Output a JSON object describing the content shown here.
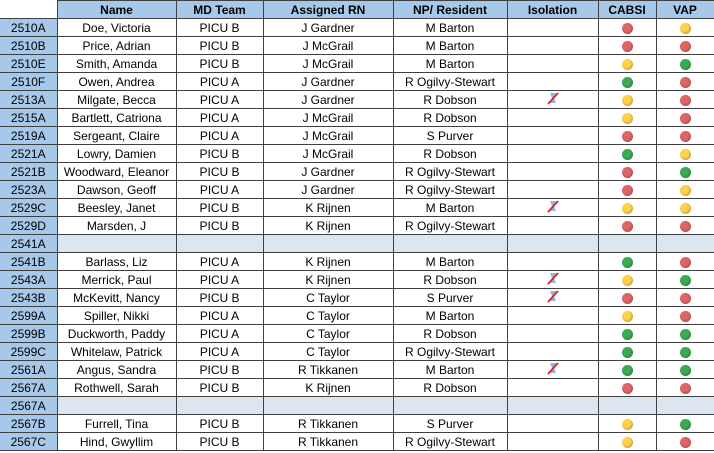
{
  "colors": {
    "red": "#e06666",
    "yellow": "#ffd24d",
    "green": "#3cab55",
    "header": "#a6c8ea",
    "empty_row": "#dce6f1"
  },
  "headers": [
    "",
    "Name",
    "MD Team",
    "Assigned RN",
    "NP/ Resident",
    "Isolation",
    "CABSI",
    "VAP"
  ],
  "rows": [
    {
      "bed": "2510A",
      "name": "Doe, Victoria",
      "team": "PICU B",
      "rn": "J Gardner",
      "np": "M Barton",
      "iso": false,
      "cabsi": "red",
      "vap": "yellow"
    },
    {
      "bed": "2510B",
      "name": "Price, Adrian",
      "team": "PICU B",
      "rn": "J McGrail",
      "np": "M Barton",
      "iso": false,
      "cabsi": "red",
      "vap": "red"
    },
    {
      "bed": "2510E",
      "name": "Smith, Amanda",
      "team": "PICU B",
      "rn": "J McGrail",
      "np": "M Barton",
      "iso": false,
      "cabsi": "yellow",
      "vap": "green"
    },
    {
      "bed": "2510F",
      "name": "Owen, Andrea",
      "team": "PICU A",
      "rn": "J Gardner",
      "np": "R Ogilvy-Stewart",
      "iso": false,
      "cabsi": "green",
      "vap": "red"
    },
    {
      "bed": "2513A",
      "name": "Milgate, Becca",
      "team": "PICU A",
      "rn": "J Gardner",
      "np": "R Dobson",
      "iso": true,
      "cabsi": "yellow",
      "vap": "red"
    },
    {
      "bed": "2515A",
      "name": "Bartlett, Catriona",
      "team": "PICU A",
      "rn": "J McGrail",
      "np": "R Dobson",
      "iso": false,
      "cabsi": "yellow",
      "vap": "red"
    },
    {
      "bed": "2519A",
      "name": "Sergeant, Claire",
      "team": "PICU A",
      "rn": "J McGrail",
      "np": "S Purver",
      "iso": false,
      "cabsi": "red",
      "vap": "red"
    },
    {
      "bed": "2521A",
      "name": "Lowry, Damien",
      "team": "PICU B",
      "rn": "J McGrail",
      "np": "R Dobson",
      "iso": false,
      "cabsi": "green",
      "vap": "yellow"
    },
    {
      "bed": "2521B",
      "name": "Woodward, Eleanor",
      "team": "PICU B",
      "rn": "J Gardner",
      "np": "R Ogilvy-Stewart",
      "iso": false,
      "cabsi": "red",
      "vap": "green"
    },
    {
      "bed": "2523A",
      "name": "Dawson, Geoff",
      "team": "PICU A",
      "rn": "J Gardner",
      "np": "R Ogilvy-Stewart",
      "iso": false,
      "cabsi": "red",
      "vap": "yellow"
    },
    {
      "bed": "2529C",
      "name": "Beesley, Janet",
      "team": "PICU B",
      "rn": "K Rijnen",
      "np": "M Barton",
      "iso": true,
      "cabsi": "yellow",
      "vap": "yellow"
    },
    {
      "bed": "2529D",
      "name": "Marsden, J",
      "team": "PICU B",
      "rn": "K Rijnen",
      "np": "R Ogilvy-Stewart",
      "iso": false,
      "cabsi": "red",
      "vap": "red"
    },
    {
      "bed": "2541A",
      "empty": true
    },
    {
      "bed": "2541B",
      "name": "Barlass, Liz",
      "team": "PICU A",
      "rn": "K Rijnen",
      "np": "M Barton",
      "iso": false,
      "cabsi": "green",
      "vap": "red"
    },
    {
      "bed": "2543A",
      "name": "Merrick, Paul",
      "team": "PICU A",
      "rn": "K Rijnen",
      "np": "R Dobson",
      "iso": true,
      "cabsi": "yellow",
      "vap": "green"
    },
    {
      "bed": "2543B",
      "name": "McKevitt, Nancy",
      "team": "PICU B",
      "rn": "C Taylor",
      "np": "S Purver",
      "iso": true,
      "cabsi": "red",
      "vap": "red"
    },
    {
      "bed": "2599A",
      "name": "Spiller, Nikki",
      "team": "PICU A",
      "rn": "C Taylor",
      "np": "M Barton",
      "iso": false,
      "cabsi": "yellow",
      "vap": "red"
    },
    {
      "bed": "2599B",
      "name": "Duckworth, Paddy",
      "team": "PICU A",
      "rn": "C Taylor",
      "np": "R Dobson",
      "iso": false,
      "cabsi": "green",
      "vap": "green"
    },
    {
      "bed": "2599C",
      "name": "Whitelaw, Patrick",
      "team": "PICU A",
      "rn": "C Taylor",
      "np": "R Ogilvy-Stewart",
      "iso": false,
      "cabsi": "green",
      "vap": "green"
    },
    {
      "bed": "2561A",
      "name": "Angus, Sandra",
      "team": "PICU B",
      "rn": "R Tikkanen",
      "np": "M Barton",
      "iso": true,
      "cabsi": "green",
      "vap": "green"
    },
    {
      "bed": "2567A",
      "name": "Rothwell, Sarah",
      "team": "PICU B",
      "rn": "K Rijnen",
      "np": "R Dobson",
      "iso": false,
      "cabsi": "red",
      "vap": "red"
    },
    {
      "bed": "2567A",
      "empty": true
    },
    {
      "bed": "2567B",
      "name": "Furrell, Tina",
      "team": "PICU B",
      "rn": "R Tikkanen",
      "np": "S Purver",
      "iso": false,
      "cabsi": "yellow",
      "vap": "green"
    },
    {
      "bed": "2567C",
      "name": "Hind, Gwyllim",
      "team": "PICU B",
      "rn": "R Tikkanen",
      "np": "R Ogilvy-Stewart",
      "iso": false,
      "cabsi": "yellow",
      "vap": "red"
    }
  ]
}
